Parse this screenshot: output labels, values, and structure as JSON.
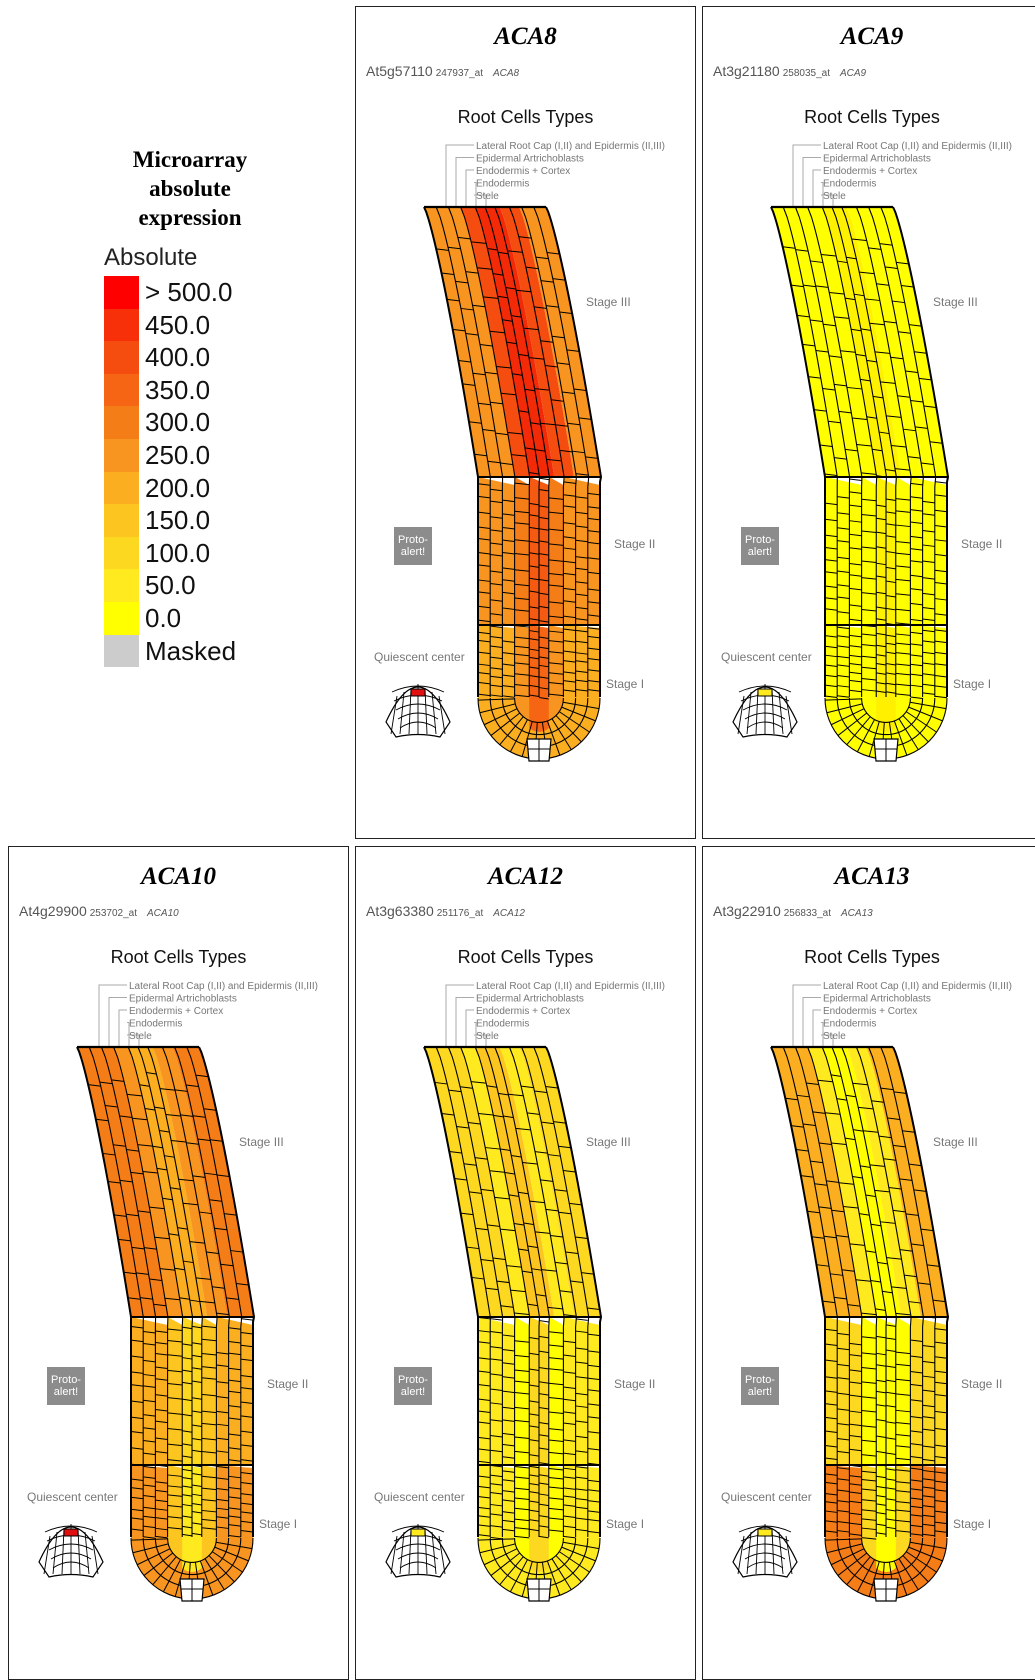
{
  "legend": {
    "title_lines": [
      "Microarray",
      "absolute",
      "expression"
    ],
    "subtitle": "Absolute",
    "scale": [
      {
        "label": "> 500.0",
        "color": "#ff0000"
      },
      {
        "label": "450.0",
        "color": "#f8300a"
      },
      {
        "label": "400.0",
        "color": "#f54c10"
      },
      {
        "label": "350.0",
        "color": "#f56514"
      },
      {
        "label": "300.0",
        "color": "#f57d18"
      },
      {
        "label": "250.0",
        "color": "#f89520"
      },
      {
        "label": "200.0",
        "color": "#faae20"
      },
      {
        "label": "150.0",
        "color": "#fcc520"
      },
      {
        "label": "100.0",
        "color": "#fdd820"
      },
      {
        "label": "50.0",
        "color": "#ffea20"
      },
      {
        "label": "0.0",
        "color": "#ffff00"
      },
      {
        "label": "Masked",
        "color": "#cccccc"
      }
    ]
  },
  "common": {
    "root_cells_types": "Root Cells Types",
    "cell_types": [
      "Lateral Root Cap (I,II) and Epidermis (II,III)",
      "Epidermal Artrichoblasts",
      "Endodermis + Cortex",
      "Endodermis",
      "Stele"
    ],
    "stage_iii": "Stage III",
    "stage_ii": "Stage II",
    "stage_i": "Stage I",
    "proto_alert": "Proto-\nalert!",
    "quiescent_center": "Quiescent center"
  },
  "panels": [
    {
      "gene": "ACA8",
      "locus": "At5g57110",
      "probe": "247937_at",
      "probe_gene": "ACA8",
      "colors": {
        "s3_outer": "#f89520",
        "s3_mid": "#f54c10",
        "s3_stele": "#f32a08",
        "s2_outer": "#f89520",
        "s2_mid": "#f57d18",
        "s2_stele": "#f55a12",
        "s1_outer": "#faae20",
        "s1_mid": "#f89520",
        "s1_stele": "#f56514",
        "qc": "#e01010"
      }
    },
    {
      "gene": "ACA9",
      "locus": "At3g21180",
      "probe": "258035_at",
      "probe_gene": "ACA9",
      "colors": {
        "s3_outer": "#ffff00",
        "s3_mid": "#ffff00",
        "s3_stele": "#fff200",
        "s2_outer": "#ffff00",
        "s2_mid": "#ffff00",
        "s2_stele": "#fff200",
        "s1_outer": "#ffff00",
        "s1_mid": "#ffff00",
        "s1_stele": "#fff000",
        "qc": "#ffea20"
      }
    },
    {
      "gene": "ACA10",
      "locus": "At4g29900",
      "probe": "253702_at",
      "probe_gene": "ACA10",
      "colors": {
        "s3_outer": "#f57d18",
        "s3_mid": "#f89520",
        "s3_stele": "#faae20",
        "s2_outer": "#faae20",
        "s2_mid": "#fcc520",
        "s2_stele": "#fdd820",
        "s1_outer": "#f89520",
        "s1_mid": "#fcc520",
        "s1_stele": "#ffea20",
        "qc": "#e01010"
      }
    },
    {
      "gene": "ACA12",
      "locus": "At3g63380",
      "probe": "251176_at",
      "probe_gene": "ACA12",
      "colors": {
        "s3_outer": "#fdd820",
        "s3_mid": "#ffea20",
        "s3_stele": "#fcc520",
        "s2_outer": "#ffea20",
        "s2_mid": "#ffff00",
        "s2_stele": "#fdd820",
        "s1_outer": "#ffea20",
        "s1_mid": "#ffff00",
        "s1_stele": "#fdd820",
        "qc": "#ffea20"
      }
    },
    {
      "gene": "ACA13",
      "locus": "At3g22910",
      "probe": "256833_at",
      "probe_gene": "ACA13",
      "colors": {
        "s3_outer": "#faae20",
        "s3_mid": "#ffea20",
        "s3_stele": "#ffff00",
        "s2_outer": "#fdd820",
        "s2_mid": "#ffff00",
        "s2_stele": "#ffff00",
        "s1_outer": "#f57d18",
        "s1_mid": "#fdd820",
        "s1_stele": "#ffff00",
        "qc": "#ffea20"
      }
    }
  ]
}
